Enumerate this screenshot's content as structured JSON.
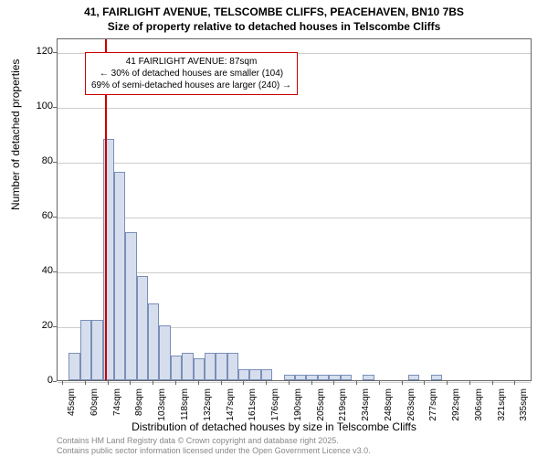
{
  "chart": {
    "type": "histogram",
    "title_main": "41, FAIRLIGHT AVENUE, TELSCOMBE CLIFFS, PEACEHAVEN, BN10 7BS",
    "title_sub": "Size of property relative to detached houses in Telscombe Cliffs",
    "y_axis_label": "Number of detached properties",
    "x_axis_label": "Distribution of detached houses by size in Telscombe Cliffs",
    "y_ticks": [
      0,
      20,
      40,
      60,
      80,
      100,
      120
    ],
    "ylim": [
      0,
      125
    ],
    "x_tick_labels": [
      "45sqm",
      "60sqm",
      "74sqm",
      "89sqm",
      "103sqm",
      "118sqm",
      "132sqm",
      "147sqm",
      "161sqm",
      "176sqm",
      "190sqm",
      "205sqm",
      "219sqm",
      "234sqm",
      "248sqm",
      "263sqm",
      "277sqm",
      "292sqm",
      "306sqm",
      "321sqm",
      "335sqm"
    ],
    "bar_values": [
      0,
      10,
      22,
      22,
      88,
      76,
      54,
      38,
      28,
      20,
      9,
      10,
      8,
      10,
      10,
      10,
      4,
      4,
      4,
      0,
      2,
      2,
      2,
      2,
      2,
      2,
      0,
      2,
      0,
      0,
      0,
      2,
      0,
      2,
      0,
      0,
      0,
      0,
      0,
      0,
      0,
      0
    ],
    "bar_fill": "#d6deee",
    "bar_border": "#7a8fb8",
    "grid_color": "#cccccc",
    "background": "#ffffff",
    "highlight_color": "#cc0000",
    "highlight_position_index": 4.2,
    "annotation": {
      "line1": "41 FAIRLIGHT AVENUE: 87sqm",
      "line2": "← 30% of detached houses are smaller (104)",
      "line3": "69% of semi-detached houses are larger (240) →"
    },
    "footer1": "Contains HM Land Registry data © Crown copyright and database right 2025.",
    "footer2": "Contains public sector information licensed under the Open Government Licence v3.0."
  }
}
